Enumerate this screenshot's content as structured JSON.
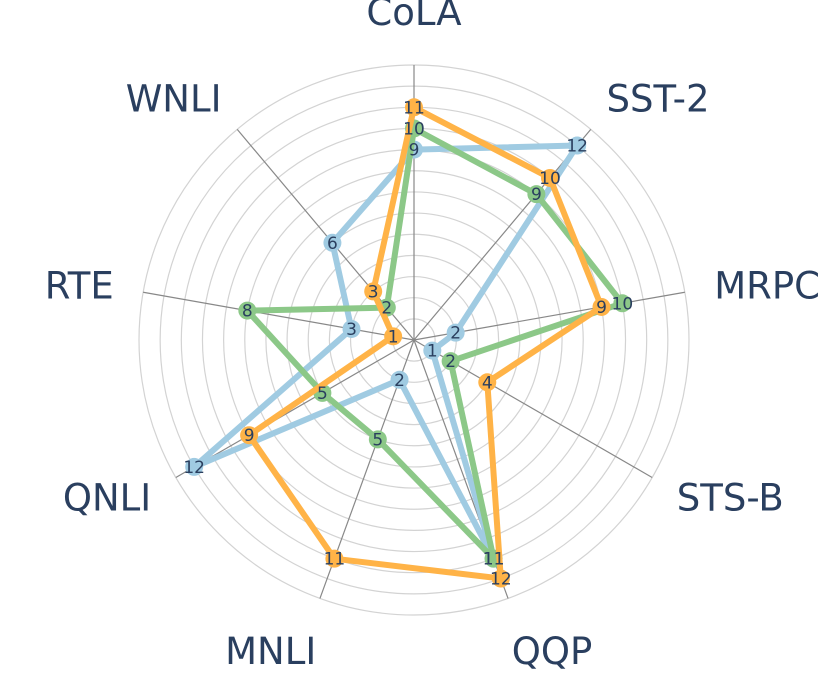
{
  "chart_data": {
    "type": "radar",
    "axes": [
      "CoLA",
      "SST-2",
      "MRPC",
      "STS-B",
      "QQP",
      "MNLI",
      "QNLI",
      "RTE",
      "WNLI"
    ],
    "rmax": 13,
    "grid_rings": 13,
    "series": [
      {
        "color": "#a0cbe2",
        "values": [
          9,
          12,
          2,
          1,
          11,
          2,
          12,
          3,
          6
        ]
      },
      {
        "color": "#8cc888",
        "values": [
          10,
          9,
          10,
          2,
          11,
          5,
          5,
          8,
          2
        ]
      },
      {
        "color": "#ffb347",
        "values": [
          11,
          10,
          9,
          4,
          12,
          11,
          9,
          1,
          3
        ]
      }
    ]
  }
}
